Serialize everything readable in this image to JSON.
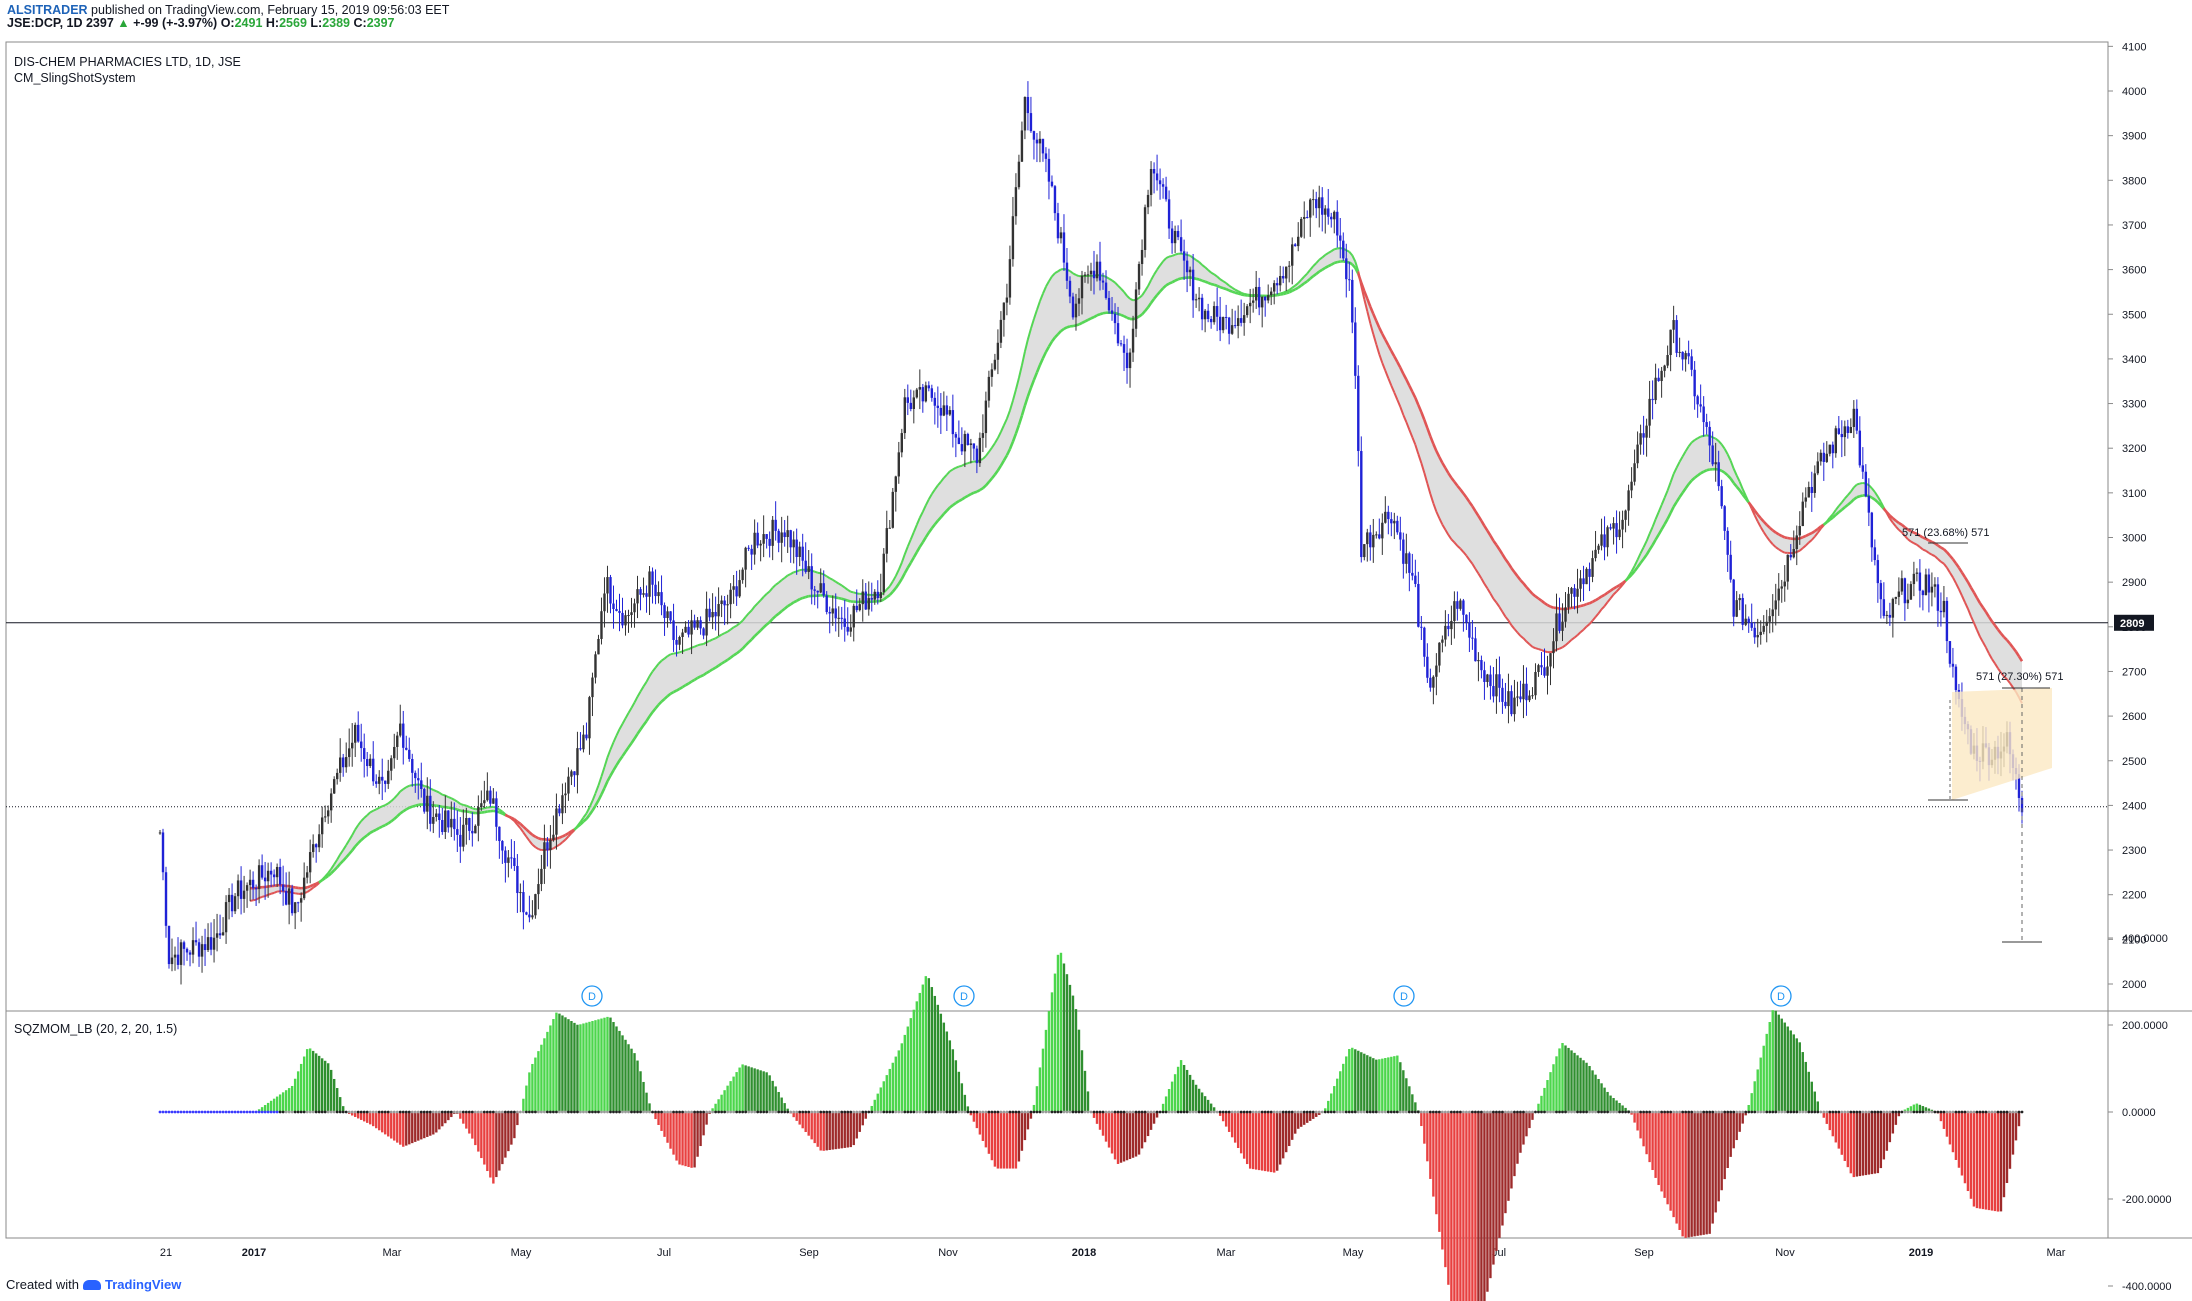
{
  "header": {
    "author": "ALSITRADER",
    "published": "published on TradingView.com, February 15, 2019 09:56:03 EET",
    "symbol": "JSE:DCP, 1D",
    "last": "2397",
    "change": "+-99 (+-3.97%)",
    "open_label": "O:",
    "open": "2491",
    "high_label": "H:",
    "high": "2569",
    "low_label": "L:",
    "low": "2389",
    "close_label": "C:",
    "close": "2397",
    "title": "DIS-CHEM PHARMACIES LTD, 1D, JSE",
    "indicator": "CM_SlingShotSystem"
  },
  "footer": {
    "created_with": "Created with",
    "brand": "TradingView"
  },
  "colors": {
    "up_bar": "#333333",
    "down_bar": "#1f22d6",
    "ema_up": "#55d655",
    "ema_down": "#e05555",
    "cloud": "#d9d9d9",
    "mom_up": "#4cd64c",
    "mom_down": "#e84040"
  },
  "chart_data": [
    {
      "type": "candlestick",
      "title": "DIS-CHEM PHARMACIES LTD, 1D, JSE",
      "x_tick_labels": [
        "21",
        "2017",
        "Mar",
        "May",
        "Jul",
        "Sep",
        "Nov",
        "2018",
        "Mar",
        "May",
        "Jul",
        "Sep",
        "Nov",
        "2019",
        "Mar"
      ],
      "y_tick_labels": [
        "4100",
        "4000",
        "3900",
        "3800",
        "3700",
        "3600",
        "3500",
        "3400",
        "3300",
        "3200",
        "3100",
        "3000",
        "2900",
        "2800",
        "2700",
        "2600",
        "2500",
        "2400",
        "2300",
        "2200",
        "2100",
        "2000"
      ],
      "ylim": [
        1970,
        4105
      ],
      "horizontal_line": {
        "value": 2809,
        "label": "2809"
      },
      "current_price_line": 2397,
      "annotations": [
        {
          "text": "571 (23.68%) 571"
        },
        {
          "text": "571 (27.30%) 571"
        }
      ],
      "dividend_markers": [
        "D",
        "D",
        "D",
        "D"
      ],
      "price_path": [
        [
          0,
          2340
        ],
        [
          3,
          2060
        ],
        [
          18,
          2100
        ],
        [
          25,
          2200
        ],
        [
          38,
          2260
        ],
        [
          45,
          2160
        ],
        [
          55,
          2400
        ],
        [
          65,
          2560
        ],
        [
          75,
          2420
        ],
        [
          80,
          2580
        ],
        [
          88,
          2400
        ],
        [
          100,
          2330
        ],
        [
          110,
          2420
        ],
        [
          115,
          2300
        ],
        [
          123,
          2150
        ],
        [
          128,
          2300
        ],
        [
          135,
          2450
        ],
        [
          142,
          2560
        ],
        [
          148,
          2900
        ],
        [
          155,
          2820
        ],
        [
          163,
          2900
        ],
        [
          172,
          2760
        ],
        [
          180,
          2800
        ],
        [
          190,
          2860
        ],
        [
          198,
          3000
        ],
        [
          208,
          3020
        ],
        [
          218,
          2890
        ],
        [
          228,
          2810
        ],
        [
          240,
          2900
        ],
        [
          248,
          3300
        ],
        [
          258,
          3320
        ],
        [
          266,
          3220
        ],
        [
          272,
          3180
        ],
        [
          282,
          3560
        ],
        [
          288,
          3980
        ],
        [
          296,
          3800
        ],
        [
          304,
          3520
        ],
        [
          312,
          3620
        ],
        [
          322,
          3380
        ],
        [
          330,
          3850
        ],
        [
          340,
          3620
        ],
        [
          348,
          3500
        ],
        [
          355,
          3480
        ],
        [
          366,
          3540
        ],
        [
          376,
          3620
        ],
        [
          384,
          3760
        ],
        [
          392,
          3700
        ],
        [
          396,
          3560
        ],
        [
          398,
          3380
        ],
        [
          400,
          2980
        ],
        [
          410,
          3060
        ],
        [
          418,
          2880
        ],
        [
          422,
          2660
        ],
        [
          432,
          2860
        ],
        [
          440,
          2710
        ],
        [
          450,
          2620
        ],
        [
          460,
          2700
        ],
        [
          468,
          2860
        ],
        [
          478,
          2960
        ],
        [
          488,
          3060
        ],
        [
          496,
          3300
        ],
        [
          504,
          3460
        ],
        [
          510,
          3360
        ],
        [
          518,
          3150
        ],
        [
          524,
          2850
        ],
        [
          532,
          2790
        ],
        [
          540,
          2900
        ],
        [
          548,
          3100
        ],
        [
          556,
          3200
        ],
        [
          564,
          3280
        ],
        [
          568,
          3080
        ],
        [
          574,
          2800
        ],
        [
          580,
          2880
        ],
        [
          588,
          2900
        ],
        [
          594,
          2840
        ],
        [
          598,
          2640
        ],
        [
          604,
          2520
        ],
        [
          610,
          2520
        ],
        [
          615,
          2540
        ],
        [
          620,
          2397
        ]
      ]
    },
    {
      "type": "bar",
      "title": "SQZMOM_LB (20, 2, 20, 1.5)",
      "y_tick_labels": [
        "400.0000",
        "200.0000",
        "0.0000",
        "-200.0000",
        "-400.0000"
      ],
      "ylim": [
        -600,
        430
      ],
      "momentum_path": [
        [
          0,
          0
        ],
        [
          36,
          0
        ],
        [
          50,
          60
        ],
        [
          56,
          150
        ],
        [
          64,
          110
        ],
        [
          70,
          0
        ],
        [
          80,
          -30
        ],
        [
          92,
          -80
        ],
        [
          104,
          -50
        ],
        [
          112,
          0
        ],
        [
          118,
          -60
        ],
        [
          126,
          -165
        ],
        [
          134,
          -60
        ],
        [
          140,
          100
        ],
        [
          150,
          230
        ],
        [
          158,
          200
        ],
        [
          170,
          220
        ],
        [
          180,
          130
        ],
        [
          186,
          0
        ],
        [
          196,
          -120
        ],
        [
          202,
          -130
        ],
        [
          208,
          0
        ],
        [
          220,
          110
        ],
        [
          230,
          90
        ],
        [
          238,
          0
        ],
        [
          250,
          -90
        ],
        [
          262,
          -80
        ],
        [
          268,
          0
        ],
        [
          280,
          150
        ],
        [
          290,
          320
        ],
        [
          300,
          140
        ],
        [
          306,
          0
        ],
        [
          316,
          -130
        ],
        [
          324,
          -130
        ],
        [
          330,
          0
        ],
        [
          340,
          380
        ],
        [
          346,
          250
        ],
        [
          352,
          0
        ],
        [
          362,
          -120
        ],
        [
          370,
          -100
        ],
        [
          378,
          0
        ],
        [
          386,
          120
        ],
        [
          392,
          60
        ],
        [
          400,
          0
        ],
        [
          412,
          -130
        ],
        [
          422,
          -140
        ],
        [
          430,
          -40
        ],
        [
          440,
          0
        ],
        [
          450,
          150
        ],
        [
          460,
          120
        ],
        [
          468,
          130
        ],
        [
          476,
          0
        ],
        [
          490,
          -500
        ],
        [
          498,
          -520
        ],
        [
          506,
          -300
        ],
        [
          514,
          -100
        ],
        [
          520,
          0
        ],
        [
          530,
          160
        ],
        [
          540,
          110
        ],
        [
          548,
          40
        ],
        [
          556,
          0
        ],
        [
          566,
          -160
        ],
        [
          576,
          -290
        ],
        [
          586,
          -280
        ],
        [
          594,
          -100
        ],
        [
          600,
          0
        ],
        [
          610,
          240
        ],
        [
          620,
          160
        ],
        [
          628,
          0
        ],
        [
          640,
          -150
        ],
        [
          650,
          -140
        ],
        [
          658,
          0
        ],
        [
          664,
          20
        ],
        [
          672,
          0
        ],
        [
          686,
          -220
        ],
        [
          696,
          -230
        ],
        [
          704,
          0
        ]
      ]
    }
  ]
}
